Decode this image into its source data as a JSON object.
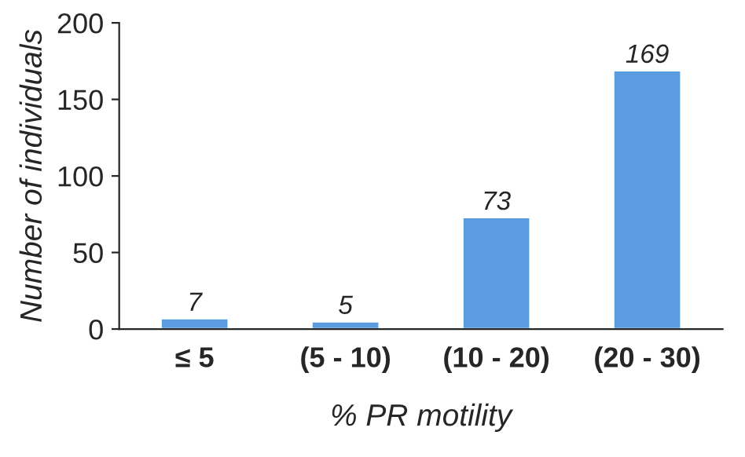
{
  "chart_data": {
    "type": "bar",
    "xlabel": "% PR motility",
    "ylabel": "Number of individuals",
    "categories": [
      "≤ 5",
      "(5 - 10)",
      "(10 - 20)",
      "(20 - 30)"
    ],
    "values": [
      7,
      5,
      73,
      169
    ],
    "color": "#5b9be0",
    "ylim": [
      0,
      200
    ],
    "yticks": [
      0,
      50,
      100,
      150,
      200
    ],
    "grid": false,
    "data_labels": true
  }
}
